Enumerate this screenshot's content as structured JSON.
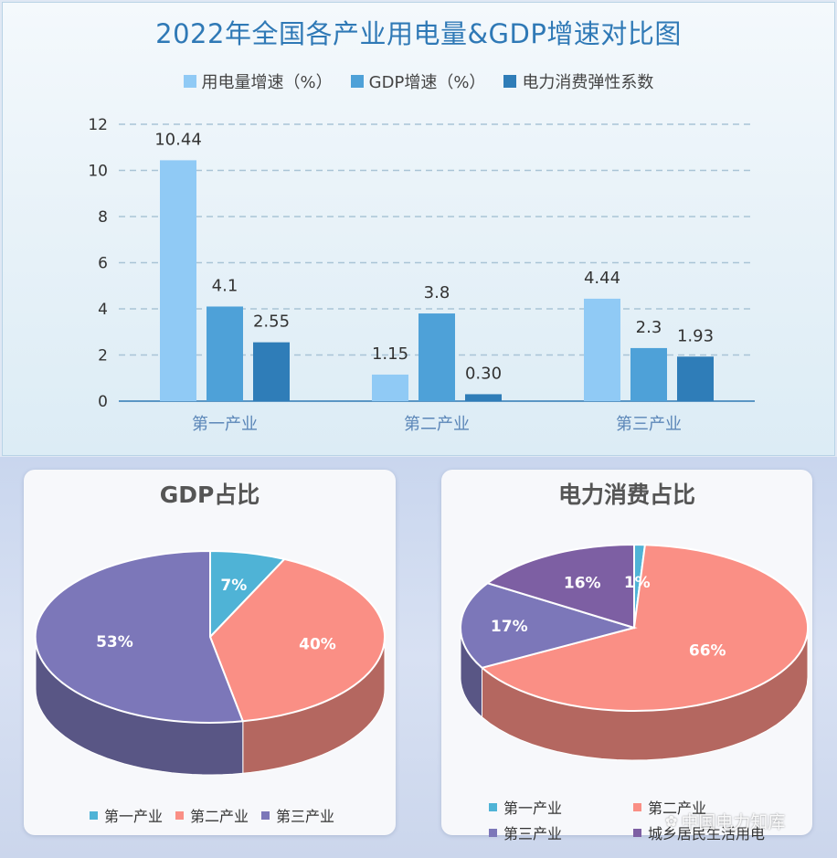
{
  "bar_chart": {
    "title": "2022年全国各产业用电量&GDP增速对比图",
    "legend": [
      {
        "name": "用电量增速（%）",
        "color": "#90caf5"
      },
      {
        "name": "GDP增速（%）",
        "color": "#4ea1d8"
      },
      {
        "name": "电力消费弹性系数",
        "color": "#2f7db8"
      }
    ]
  },
  "gdp_pie": {
    "title": "GDP占比",
    "legend": [
      {
        "name": "第一产业",
        "color": "#4fb3d6"
      },
      {
        "name": "第二产业",
        "color": "#fa8f85"
      },
      {
        "name": "第三产业",
        "color": "#7c77b9"
      }
    ]
  },
  "power_pie": {
    "title": "电力消费占比",
    "legend": [
      {
        "name": "第一产业",
        "color": "#4fb3d6"
      },
      {
        "name": "第二产业",
        "color": "#fa8f85"
      },
      {
        "name": "第三产业",
        "color": "#7c77b9"
      },
      {
        "name": "城乡居民生活用电",
        "color": "#7d5fa3"
      }
    ]
  },
  "watermark": "中国电力知库",
  "chart_data": [
    {
      "type": "bar",
      "title": "2022年全国各产业用电量&GDP增速对比图",
      "categories": [
        "第一产业",
        "第二产业",
        "第三产业"
      ],
      "series": [
        {
          "name": "用电量增速（%）",
          "values": [
            10.44,
            1.15,
            4.44
          ],
          "labels": [
            "10.44",
            "1.15",
            "4.44"
          ]
        },
        {
          "name": "GDP增速（%）",
          "values": [
            4.1,
            3.8,
            2.3
          ],
          "labels": [
            "4.1",
            "3.8",
            "2.3"
          ]
        },
        {
          "name": "电力消费弹性系数",
          "values": [
            2.55,
            0.3,
            1.93
          ],
          "labels": [
            "2.55",
            "0.30",
            "1.93"
          ]
        }
      ],
      "yticks": [
        "0",
        "2",
        "4",
        "6",
        "8",
        "10",
        "12"
      ],
      "ylim": [
        0,
        12
      ],
      "grid": true,
      "legend_position": "top"
    },
    {
      "type": "pie",
      "title": "GDP占比",
      "categories": [
        "第一产业",
        "第二产业",
        "第三产业"
      ],
      "values": [
        7,
        40,
        53
      ],
      "labels": [
        "7%",
        "40%",
        "53%"
      ],
      "legend_position": "bottom"
    },
    {
      "type": "pie",
      "title": "电力消费占比",
      "categories": [
        "第一产业",
        "第二产业",
        "第三产业",
        "城乡居民生活用电"
      ],
      "values": [
        1,
        66,
        17,
        16
      ],
      "labels": [
        "1%",
        "66%",
        "17%",
        "16%"
      ],
      "legend_position": "bottom"
    }
  ]
}
